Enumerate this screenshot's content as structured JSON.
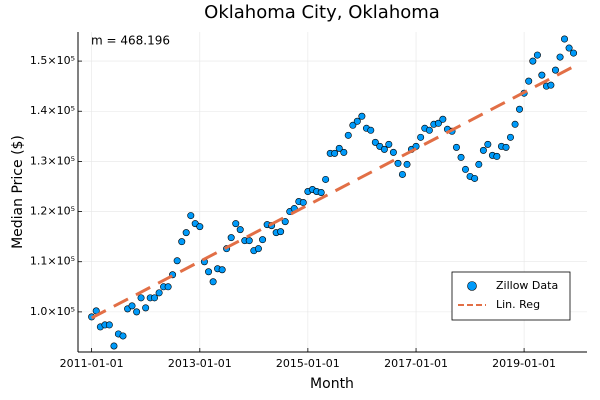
{
  "chart_data": {
    "type": "scatter",
    "title": "Oklahoma City, Oklahoma",
    "x_label": "Month",
    "y_label": "Median Price ($)",
    "annotation": "m = 468.196",
    "xlim": [
      "2010-10-01",
      "2020-03-01"
    ],
    "xticks": [
      "2011-01-01",
      "2013-01-01",
      "2015-01-01",
      "2017-01-01",
      "2019-01-01"
    ],
    "ylim": [
      92000,
      155800
    ],
    "yticks": [
      {
        "value": 100000,
        "label": "1.0×10⁵"
      },
      {
        "value": 110000,
        "label": "1.1×10⁵"
      },
      {
        "value": 120000,
        "label": "1.2×10⁵"
      },
      {
        "value": 130000,
        "label": "1.3×10⁵"
      },
      {
        "value": 140000,
        "label": "1.4×10⁵"
      },
      {
        "value": 150000,
        "label": "1.5×10⁵"
      }
    ],
    "grid": true,
    "legend": "lower right",
    "series": [
      {
        "name": "Zillow Data",
        "type": "scatter",
        "color": "#009af9",
        "x": [
          "2011-01-01",
          "2011-02-01",
          "2011-03-01",
          "2011-04-01",
          "2011-05-01",
          "2011-06-01",
          "2011-07-01",
          "2011-08-01",
          "2011-09-01",
          "2011-10-01",
          "2011-11-01",
          "2011-12-01",
          "2012-01-01",
          "2012-02-01",
          "2012-03-01",
          "2012-04-01",
          "2012-05-01",
          "2012-06-01",
          "2012-07-01",
          "2012-08-01",
          "2012-09-01",
          "2012-10-01",
          "2012-11-01",
          "2012-12-01",
          "2013-01-01",
          "2013-02-01",
          "2013-03-01",
          "2013-04-01",
          "2013-05-01",
          "2013-06-01",
          "2013-07-01",
          "2013-08-01",
          "2013-09-01",
          "2013-10-01",
          "2013-11-01",
          "2013-12-01",
          "2014-01-01",
          "2014-02-01",
          "2014-03-01",
          "2014-04-01",
          "2014-05-01",
          "2014-06-01",
          "2014-07-01",
          "2014-08-01",
          "2014-09-01",
          "2014-10-01",
          "2014-11-01",
          "2014-12-01",
          "2015-01-01",
          "2015-02-01",
          "2015-03-01",
          "2015-04-01",
          "2015-05-01",
          "2015-06-01",
          "2015-07-01",
          "2015-08-01",
          "2015-09-01",
          "2015-10-01",
          "2015-11-01",
          "2015-12-01",
          "2016-01-01",
          "2016-02-01",
          "2016-03-01",
          "2016-04-01",
          "2016-05-01",
          "2016-06-01",
          "2016-07-01",
          "2016-08-01",
          "2016-09-01",
          "2016-10-01",
          "2016-11-01",
          "2016-12-01",
          "2017-01-01",
          "2017-02-01",
          "2017-03-01",
          "2017-04-01",
          "2017-05-01",
          "2017-06-01",
          "2017-07-01",
          "2017-08-01",
          "2017-09-01",
          "2017-10-01",
          "2017-11-01",
          "2017-12-01",
          "2018-01-01",
          "2018-02-01",
          "2018-03-01",
          "2018-04-01",
          "2018-05-01",
          "2018-06-01",
          "2018-07-01",
          "2018-08-01",
          "2018-09-01",
          "2018-10-01",
          "2018-11-01",
          "2018-12-01",
          "2019-01-01",
          "2019-02-01",
          "2019-03-01",
          "2019-04-01",
          "2019-05-01",
          "2019-06-01",
          "2019-07-01",
          "2019-08-01",
          "2019-09-01",
          "2019-10-01",
          "2019-11-01",
          "2019-12-01"
        ],
        "values": [
          99000,
          100200,
          97000,
          97400,
          97400,
          93200,
          95600,
          95200,
          100600,
          101200,
          100000,
          102800,
          100800,
          102800,
          102800,
          103800,
          105000,
          105000,
          107400,
          110200,
          114000,
          115800,
          119200,
          117600,
          117000,
          110000,
          108000,
          106000,
          108600,
          108400,
          112600,
          114800,
          117600,
          116400,
          114200,
          114200,
          112200,
          112600,
          114400,
          117400,
          117200,
          115800,
          116000,
          118000,
          120000,
          120600,
          122000,
          121800,
          124000,
          124400,
          124000,
          123800,
          126400,
          131600,
          131600,
          132600,
          131800,
          135200,
          137200,
          138000,
          139000,
          136600,
          136200,
          133800,
          133000,
          132400,
          133400,
          131800,
          129600,
          127400,
          129400,
          132400,
          133000,
          134800,
          136600,
          136200,
          137400,
          137600,
          138400,
          136400,
          136000,
          132800,
          130800,
          128400,
          127000,
          126600,
          129400,
          132200,
          133400,
          131200,
          131000,
          133000,
          132800,
          134800,
          137400,
          140400,
          143600,
          146000,
          150000,
          151200,
          147200,
          145000,
          145200,
          148200,
          150800,
          154400,
          152600,
          151600
        ]
      },
      {
        "name": "Lin. Reg",
        "type": "line",
        "color": "#e26f46",
        "dash": true,
        "x": [
          "2011-01-01",
          "2019-12-01"
        ],
        "values": [
          98800,
          148900
        ]
      }
    ]
  }
}
